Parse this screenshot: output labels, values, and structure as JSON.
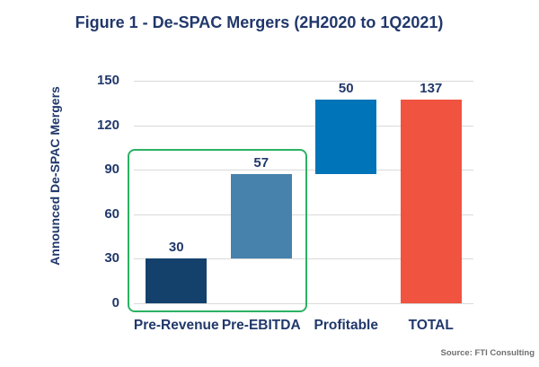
{
  "chart_data": {
    "type": "bar",
    "subtype": "waterfall",
    "title": "Figure 1 - De-SPAC Mergers (2H2020 to 1Q2021)",
    "ylabel": "Announced De-SPAC Mergers",
    "source": "Source: FTI Consulting",
    "ylim": [
      0,
      150
    ],
    "yticks": [
      0,
      30,
      60,
      90,
      120,
      150
    ],
    "grid": true,
    "legend": "none",
    "categories": [
      "Pre-Revenue",
      "Pre-EBITDA",
      "Profitable",
      "TOTAL"
    ],
    "bars": [
      {
        "label": "Pre-Revenue",
        "value": 30,
        "base": 0,
        "top": 30,
        "color": "#14416C"
      },
      {
        "label": "Pre-EBITDA",
        "value": 57,
        "base": 30,
        "top": 87,
        "color": "#4682AB"
      },
      {
        "label": "Profitable",
        "value": 50,
        "base": 87,
        "top": 137,
        "color": "#0074B9"
      },
      {
        "label": "TOTAL",
        "value": 137,
        "base": 0,
        "top": 137,
        "color": "#F05340"
      }
    ],
    "highlight_box": {
      "covers": [
        "Pre-Revenue",
        "Pre-EBITDA"
      ],
      "color": "#2BB263"
    },
    "colors": {
      "text_navy": "#21386B",
      "gridline": "#D9D9D9",
      "source_gray": "#6F6F6F",
      "background": "#FFFFFF"
    }
  }
}
